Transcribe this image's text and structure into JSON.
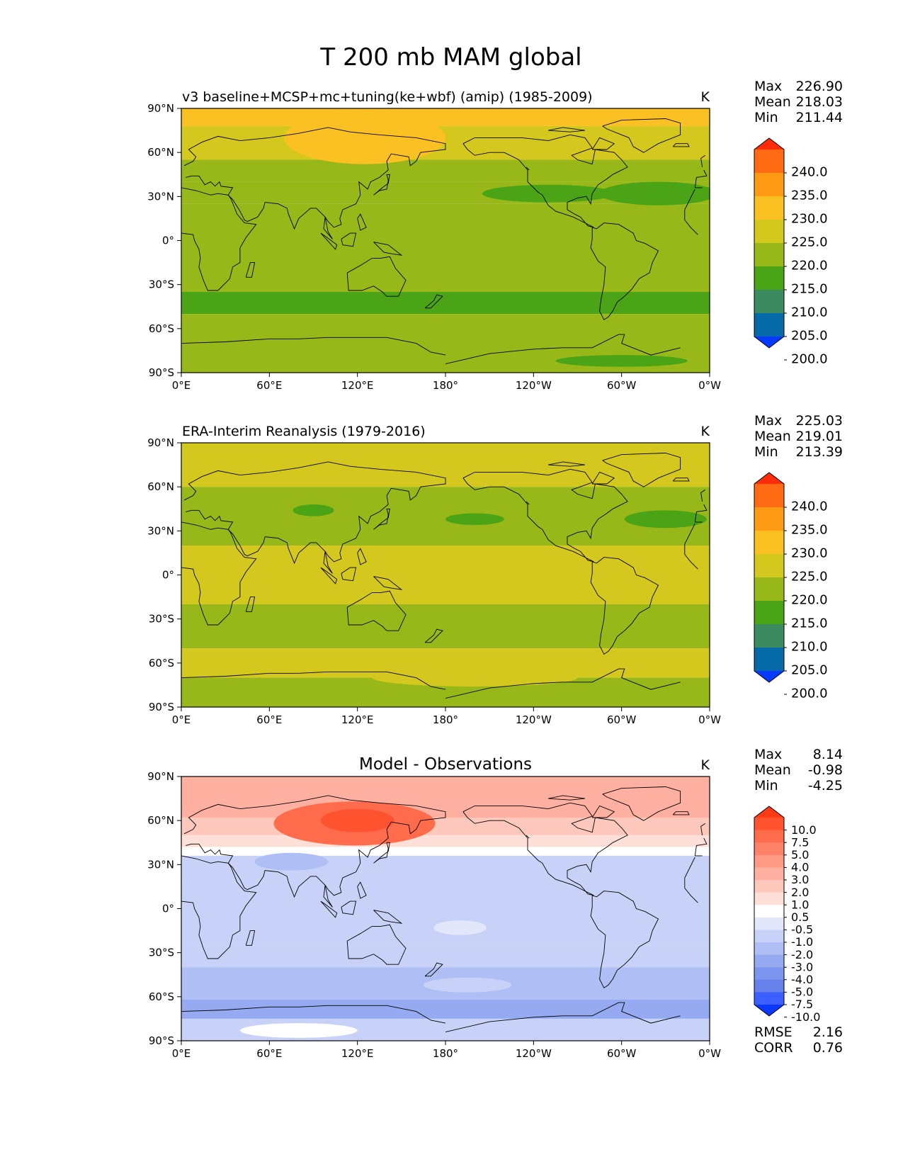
{
  "title": "T 200 mb MAM global",
  "chart_data": [
    {
      "type": "heatmap",
      "panel": "model",
      "title": "v3 baseline+MCSP+mc+tuning(ke+wbf) (amip) (1985-2009)",
      "units": "K",
      "stats": {
        "max_label": "Max",
        "max": "226.90",
        "mean_label": "Mean",
        "mean": "218.03",
        "min_label": "Min",
        "min": "211.44"
      },
      "x_ticks": [
        "0°E",
        "60°E",
        "120°E",
        "180°",
        "120°W",
        "60°W",
        "0°W"
      ],
      "y_ticks": [
        "90°N",
        "60°N",
        "30°N",
        "0°",
        "30°S",
        "60°S",
        "90°S"
      ],
      "xlim": [
        0,
        360
      ],
      "ylim": [
        -90,
        90
      ],
      "colorbar": {
        "levels": [
          "240.0",
          "235.0",
          "230.0",
          "225.0",
          "220.0",
          "215.0",
          "210.0",
          "205.0",
          "200.0"
        ],
        "colors": [
          "#ff2b0a",
          "#ff6a12",
          "#ff9a14",
          "#fbc021",
          "#d4c81e",
          "#97b818",
          "#4ba415",
          "#3b8a60",
          "#0669a8",
          "#0539ff"
        ]
      },
      "field_bands": [
        {
          "lat_top": 90,
          "lat_bottom": 78,
          "value": 225.5
        },
        {
          "lat_top": 78,
          "lat_bottom": 55,
          "value": 222.0
        },
        {
          "lat_top": 55,
          "lat_bottom": 40,
          "value": 218.0
        },
        {
          "lat_top": 40,
          "lat_bottom": 25,
          "value": 216.5
        },
        {
          "lat_top": 25,
          "lat_bottom": -35,
          "value": 218.0
        },
        {
          "lat_top": -35,
          "lat_bottom": -50,
          "value": 214.0
        },
        {
          "lat_top": -50,
          "lat_bottom": -90,
          "value": 218.0
        }
      ],
      "field_blobs": [
        {
          "lon": 125,
          "lat": 70,
          "dlon": 55,
          "dlat": 18,
          "value": 226.5
        },
        {
          "lon": 250,
          "lat": 32,
          "dlon": 45,
          "dlat": 6,
          "value": 214.0
        },
        {
          "lon": 325,
          "lat": 32,
          "dlon": 40,
          "dlat": 8,
          "value": 214.0
        },
        {
          "lon": 300,
          "lat": -82,
          "dlon": 45,
          "dlat": 4,
          "value": 212.5
        }
      ]
    },
    {
      "type": "heatmap",
      "panel": "observations",
      "title": "ERA-Interim Reanalysis (1979-2016)",
      "units": "K",
      "stats": {
        "max_label": "Max",
        "max": "225.03",
        "mean_label": "Mean",
        "mean": "219.01",
        "min_label": "Min",
        "min": "213.39"
      },
      "x_ticks": [
        "0°E",
        "60°E",
        "120°E",
        "180°",
        "120°W",
        "60°W",
        "0°W"
      ],
      "y_ticks": [
        "90°N",
        "60°N",
        "30°N",
        "0°",
        "30°S",
        "60°S",
        "90°S"
      ],
      "xlim": [
        0,
        360
      ],
      "ylim": [
        -90,
        90
      ],
      "colorbar": {
        "levels": [
          "240.0",
          "235.0",
          "230.0",
          "225.0",
          "220.0",
          "215.0",
          "210.0",
          "205.0",
          "200.0"
        ],
        "colors": [
          "#ff2b0a",
          "#ff6a12",
          "#ff9a14",
          "#fbc021",
          "#d4c81e",
          "#97b818",
          "#4ba415",
          "#3b8a60",
          "#0669a8",
          "#0539ff"
        ]
      },
      "field_bands": [
        {
          "lat_top": 90,
          "lat_bottom": 60,
          "value": 221.0
        },
        {
          "lat_top": 60,
          "lat_bottom": 20,
          "value": 218.0
        },
        {
          "lat_top": 20,
          "lat_bottom": -20,
          "value": 221.0
        },
        {
          "lat_top": -20,
          "lat_bottom": -50,
          "value": 218.0
        },
        {
          "lat_top": -50,
          "lat_bottom": -70,
          "value": 221.0
        },
        {
          "lat_top": -70,
          "lat_bottom": -90,
          "value": 218.0
        }
      ],
      "field_blobs": [
        {
          "lon": 90,
          "lat": 44,
          "dlon": 14,
          "dlat": 4,
          "value": 214.0
        },
        {
          "lon": 200,
          "lat": 38,
          "dlon": 20,
          "dlat": 4,
          "value": 214.0
        },
        {
          "lon": 330,
          "lat": 38,
          "dlon": 28,
          "dlat": 6,
          "value": 214.0
        },
        {
          "lon": 200,
          "lat": -70,
          "dlon": 70,
          "dlat": 6,
          "value": 220.5
        }
      ]
    },
    {
      "type": "heatmap",
      "panel": "difference",
      "title": "Model - Observations",
      "units": "K",
      "stats": {
        "max_label": "Max",
        "max": "8.14",
        "mean_label": "Mean",
        "mean": "-0.98",
        "min_label": "Min",
        "min": "-4.25"
      },
      "metrics": {
        "rmse_label": "RMSE",
        "rmse": "2.16",
        "corr_label": "CORR",
        "corr": "0.76"
      },
      "x_ticks": [
        "0°E",
        "60°E",
        "120°E",
        "180°",
        "120°W",
        "60°W",
        "0°W"
      ],
      "y_ticks": [
        "90°N",
        "60°N",
        "30°N",
        "0°",
        "30°S",
        "60°S",
        "90°S"
      ],
      "xlim": [
        0,
        360
      ],
      "ylim": [
        -90,
        90
      ],
      "colorbar": {
        "levels": [
          "10.0",
          "7.5",
          "5.0",
          "4.0",
          "3.0",
          "2.0",
          "1.0",
          "0.5",
          "-0.5",
          "-1.0",
          "-2.0",
          "-3.0",
          "-4.0",
          "-5.0",
          "-7.5",
          "-10.0"
        ],
        "colors": [
          "#ff3b15",
          "#ff5330",
          "#ff6c4c",
          "#ff8268",
          "#ff9a84",
          "#ffb0a0",
          "#ffc8bc",
          "#ffe0d8",
          "#ffffff",
          "#e2e7fb",
          "#c8d2f8",
          "#afbff6",
          "#96aaf2",
          "#7d95ee",
          "#6482ea",
          "#3e5fff",
          "#0a38ff"
        ]
      },
      "field_bands": [
        {
          "lat_top": 90,
          "lat_bottom": 62,
          "value": 3.0
        },
        {
          "lat_top": 62,
          "lat_bottom": 50,
          "value": 1.5
        },
        {
          "lat_top": 50,
          "lat_bottom": 42,
          "value": 0.8
        },
        {
          "lat_top": 42,
          "lat_bottom": 36,
          "value": 0.0
        },
        {
          "lat_top": 36,
          "lat_bottom": 20,
          "value": -1.5
        },
        {
          "lat_top": 20,
          "lat_bottom": -25,
          "value": -1.2
        },
        {
          "lat_top": -25,
          "lat_bottom": -40,
          "value": -1.5
        },
        {
          "lat_top": -40,
          "lat_bottom": -62,
          "value": -2.5
        },
        {
          "lat_top": -62,
          "lat_bottom": -75,
          "value": -3.5
        },
        {
          "lat_top": -75,
          "lat_bottom": -90,
          "value": -1.5
        }
      ],
      "field_blobs": [
        {
          "lon": 118,
          "lat": 58,
          "dlon": 55,
          "dlat": 15,
          "value": 6.5
        },
        {
          "lon": 120,
          "lat": 60,
          "dlon": 25,
          "dlat": 8,
          "value": 8.0
        },
        {
          "lon": 75,
          "lat": 32,
          "dlon": 25,
          "dlat": 6,
          "value": -2.8
        },
        {
          "lon": 190,
          "lat": -13,
          "dlon": 18,
          "dlat": 5,
          "value": -0.7
        },
        {
          "lon": 80,
          "lat": -83,
          "dlon": 40,
          "dlat": 5,
          "value": -0.2
        },
        {
          "lon": 195,
          "lat": -52,
          "dlon": 30,
          "dlat": 5,
          "value": -1.5
        }
      ]
    }
  ]
}
